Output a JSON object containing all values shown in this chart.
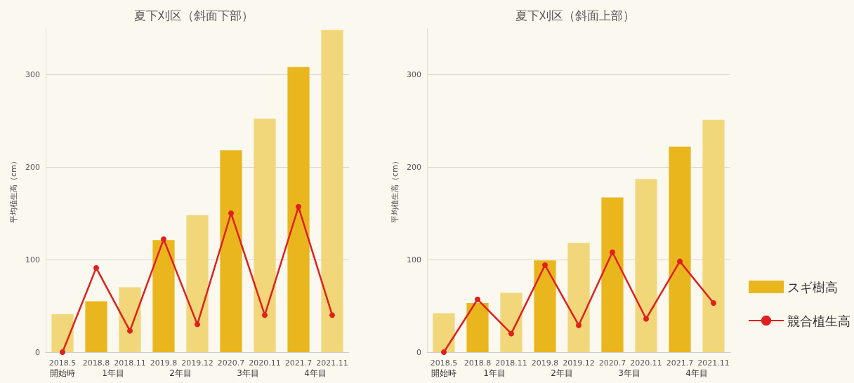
{
  "chart_data": [
    {
      "type": "bar",
      "title": "夏下刈区（斜面下部）",
      "ylabel": "平均植生高（cm）",
      "categories": [
        "2018.5",
        "2018.8",
        "2018.11",
        "2019.8",
        "2019.12",
        "2020.7",
        "2020.11",
        "2021.7",
        "2021.11"
      ],
      "series": [
        {
          "values": [
            41,
            55,
            70,
            121,
            148,
            218,
            252,
            308,
            348
          ],
          "colors": [
            "#f2d77a",
            "#e9b61e",
            "#f2d77a",
            "#e9b61e",
            "#f2d77a",
            "#e9b61e",
            "#f2d77a",
            "#e9b61e",
            "#f2d77a"
          ]
        },
        {
          "type": "line",
          "color": "#e0201c",
          "values": [
            0,
            91,
            23,
            122,
            30,
            150,
            40,
            157,
            40
          ]
        }
      ],
      "annotations": [
        "開始時",
        "1年目",
        "2年目",
        "3年目",
        "4年目"
      ],
      "ylim": [
        0,
        350
      ],
      "yticks": [
        0,
        100,
        200,
        300
      ],
      "grid": "y",
      "legend": false,
      "marker": "circle",
      "line_style": "solid"
    },
    {
      "type": "bar",
      "title": "夏下刈区（斜面上部）",
      "ylabel": "平均植生高（cm）",
      "categories": [
        "2018.5",
        "2018.8",
        "2018.11",
        "2019.8",
        "2019.12",
        "2020.7",
        "2020.11",
        "2021.7",
        "2021.11"
      ],
      "series": [
        {
          "name": "スギ樹高",
          "color": "#e9b61e",
          "values": [
            42,
            53,
            64,
            99,
            118,
            167,
            187,
            222,
            251
          ],
          "colors": [
            "#f2d77a",
            "#e9b61e",
            "#f2d77a",
            "#e9b61e",
            "#f2d77a",
            "#e9b61e",
            "#f2d77a",
            "#e9b61e",
            "#f2d77a"
          ]
        },
        {
          "type": "line",
          "name": "競合植生高",
          "color": "#e0201c",
          "values": [
            0,
            57,
            20,
            94,
            29,
            108,
            36,
            98,
            53
          ]
        }
      ],
      "annotations": [
        "開始時",
        "1年目",
        "2年目",
        "3年目",
        "4年目"
      ],
      "ylim": [
        0,
        350
      ],
      "yticks": [
        0,
        100,
        200,
        300
      ],
      "grid": "y",
      "legend": "right",
      "marker": "circle",
      "line_style": "solid"
    }
  ]
}
